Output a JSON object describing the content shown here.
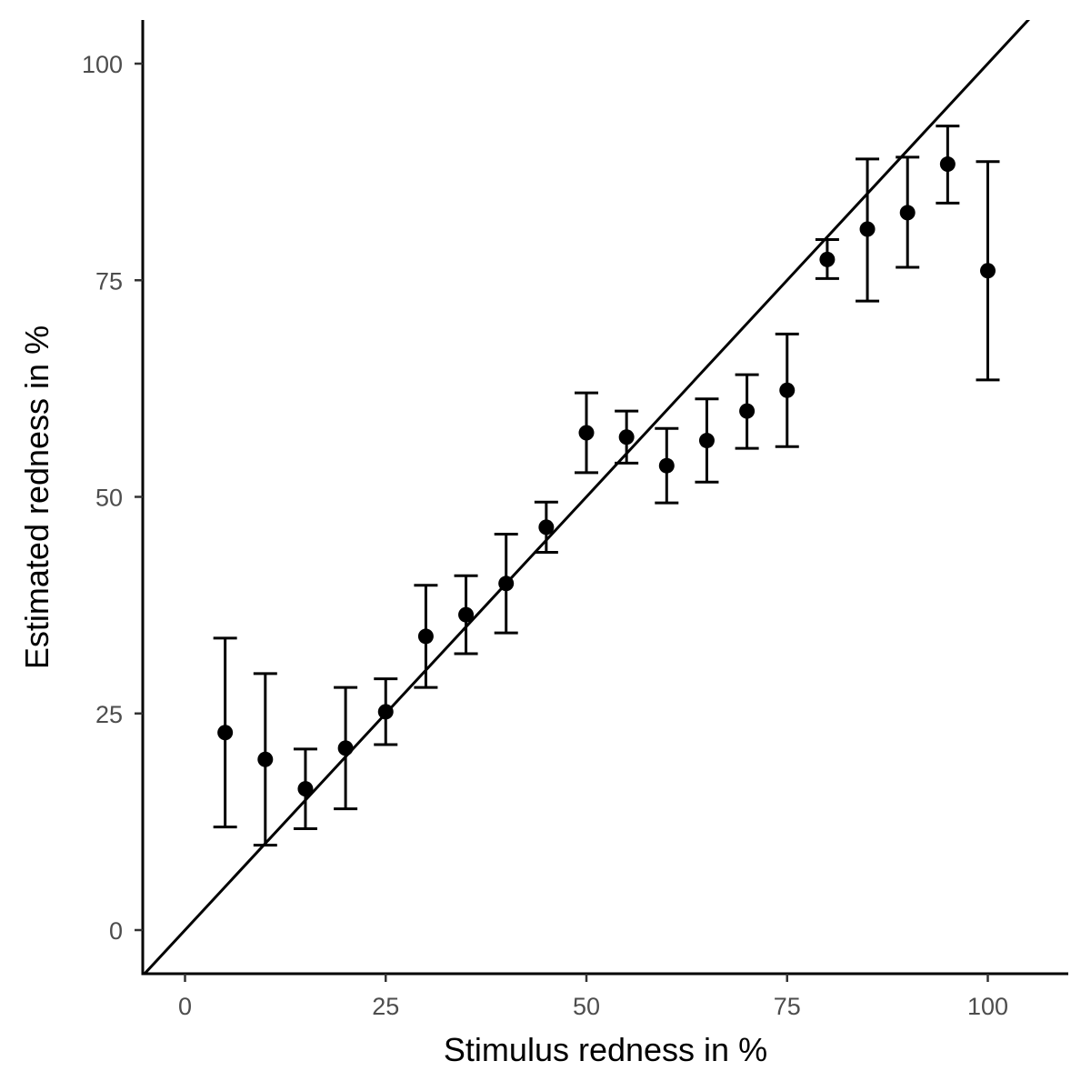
{
  "chart_data": {
    "type": "scatter",
    "title": "",
    "xlabel": "Stimulus redness in %",
    "ylabel": "Estimated redness in %",
    "xlim": [
      -5,
      110
    ],
    "ylim": [
      -5,
      105
    ],
    "x_ticks": [
      0,
      25,
      50,
      75,
      100
    ],
    "x_tick_labels": [
      "0",
      "25",
      "50",
      "75",
      "100"
    ],
    "y_ticks": [
      0,
      25,
      50,
      75,
      100
    ],
    "y_tick_labels": [
      "0",
      "25",
      "50",
      "75",
      "100"
    ],
    "grid": false,
    "legend": "none",
    "reference_line": {
      "type": "identity",
      "intercept": 0,
      "slope": 1
    },
    "points": [
      {
        "x": 5,
        "y": 22.8,
        "ymin": 11.9,
        "ymax": 33.7
      },
      {
        "x": 10,
        "y": 19.7,
        "ymin": 9.8,
        "ymax": 29.6
      },
      {
        "x": 15,
        "y": 16.3,
        "ymin": 11.7,
        "ymax": 20.9
      },
      {
        "x": 20,
        "y": 21.0,
        "ymin": 14.0,
        "ymax": 28.0
      },
      {
        "x": 25,
        "y": 25.2,
        "ymin": 21.4,
        "ymax": 29.0
      },
      {
        "x": 30,
        "y": 33.9,
        "ymin": 28.0,
        "ymax": 39.8
      },
      {
        "x": 35,
        "y": 36.4,
        "ymin": 31.9,
        "ymax": 40.9
      },
      {
        "x": 40,
        "y": 40.0,
        "ymin": 34.3,
        "ymax": 45.7
      },
      {
        "x": 45,
        "y": 46.5,
        "ymin": 43.6,
        "ymax": 49.4
      },
      {
        "x": 50,
        "y": 57.4,
        "ymin": 52.8,
        "ymax": 62.0
      },
      {
        "x": 55,
        "y": 56.9,
        "ymin": 53.9,
        "ymax": 59.9
      },
      {
        "x": 60,
        "y": 53.6,
        "ymin": 49.3,
        "ymax": 57.9
      },
      {
        "x": 65,
        "y": 56.5,
        "ymin": 51.7,
        "ymax": 61.3
      },
      {
        "x": 70,
        "y": 59.9,
        "ymin": 55.6,
        "ymax": 64.1
      },
      {
        "x": 75,
        "y": 62.3,
        "ymin": 55.8,
        "ymax": 68.8
      },
      {
        "x": 80,
        "y": 77.4,
        "ymin": 75.2,
        "ymax": 79.7
      },
      {
        "x": 85,
        "y": 80.9,
        "ymin": 72.6,
        "ymax": 89.0
      },
      {
        "x": 90,
        "y": 82.8,
        "ymin": 76.5,
        "ymax": 89.2
      },
      {
        "x": 95,
        "y": 88.4,
        "ymin": 83.9,
        "ymax": 92.8
      },
      {
        "x": 100,
        "y": 76.1,
        "ymin": 63.5,
        "ymax": 88.7
      }
    ],
    "colors": {
      "marks": "#000000",
      "tick_labels": "#4d4d4d",
      "background": "#ffffff"
    }
  }
}
